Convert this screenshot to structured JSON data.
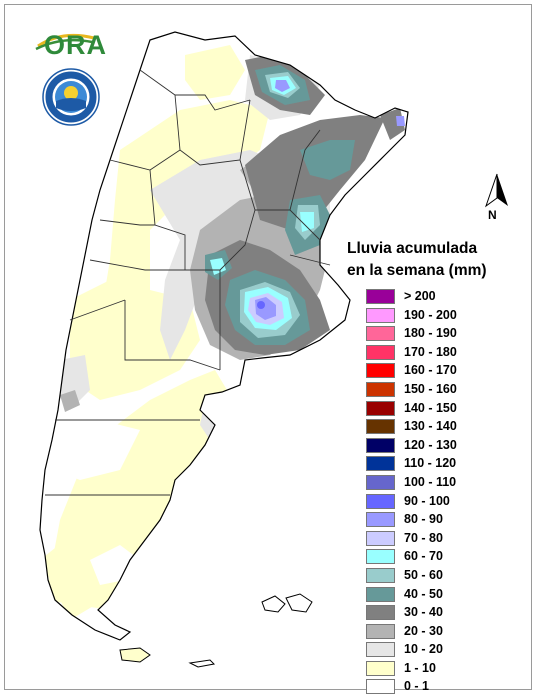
{
  "map": {
    "legend_title_line1": "Lluvia acumulada",
    "legend_title_line2": "en la semana (mm)",
    "north_label": "N",
    "logo_text": "ORA",
    "legend": [
      {
        "label": "> 200",
        "color": "#990099"
      },
      {
        "label": "190 - 200",
        "color": "#ff99ff"
      },
      {
        "label": "180 - 190",
        "color": "#ff6699"
      },
      {
        "label": "170 - 180",
        "color": "#ff3366"
      },
      {
        "label": "160 - 170",
        "color": "#ff0000"
      },
      {
        "label": "150 - 160",
        "color": "#cc3300"
      },
      {
        "label": "140 - 150",
        "color": "#990000"
      },
      {
        "label": "130 - 140",
        "color": "#663300"
      },
      {
        "label": "120 - 130",
        "color": "#000066"
      },
      {
        "label": "110 - 120",
        "color": "#003399"
      },
      {
        "label": "100 - 110",
        "color": "#6666cc"
      },
      {
        "label": "90 - 100",
        "color": "#6666ff"
      },
      {
        "label": "80 - 90",
        "color": "#9999ff"
      },
      {
        "label": "70 - 80",
        "color": "#ccccff"
      },
      {
        "label": "60 - 70",
        "color": "#99ffff"
      },
      {
        "label": "50 - 60",
        "color": "#99cccc"
      },
      {
        "label": "40 - 50",
        "color": "#669999"
      },
      {
        "label": "30 - 40",
        "color": "#808080"
      },
      {
        "label": "20 - 30",
        "color": "#b3b3b3"
      },
      {
        "label": "10 - 20",
        "color": "#e6e6e6"
      },
      {
        "label": "1 - 10",
        "color": "#ffffcc"
      },
      {
        "label": "0 - 1",
        "color": "#ffffff"
      }
    ]
  }
}
